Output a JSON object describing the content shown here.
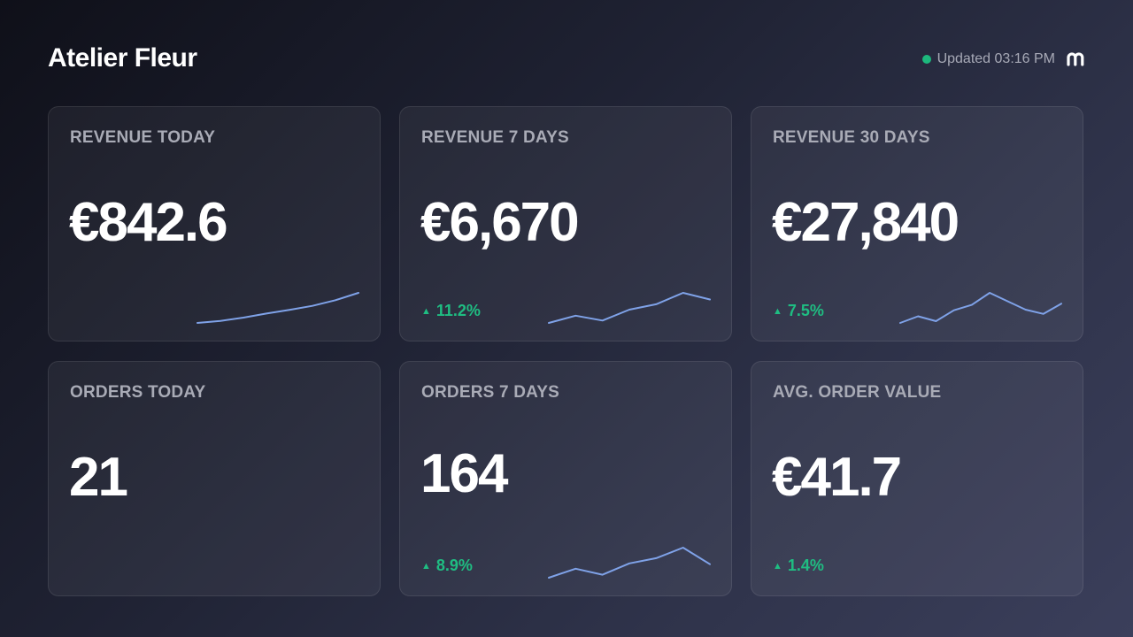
{
  "header": {
    "title": "Atelier Fleur",
    "status_text": "Updated 03:16 PM",
    "status_color": "#1db87d",
    "logo_icon": "m-logo-icon"
  },
  "colors": {
    "accent_positive": "#1fbd82",
    "sparkline": "#7fa2e8"
  },
  "cards": [
    {
      "label": "REVENUE TODAY",
      "value": "€842.6",
      "change": "",
      "spark": [
        1.0,
        1.6,
        2.6,
        3.8,
        4.9,
        6.1,
        7.8,
        10.0
      ]
    },
    {
      "label": "REVENUE 7 DAYS",
      "value": "€6,670",
      "change": "11.2%",
      "spark": [
        5.0,
        6.2,
        5.4,
        7.2,
        8.1,
        10.0,
        8.9
      ]
    },
    {
      "label": "REVENUE 30 DAYS",
      "value": "€27,840",
      "change": "7.5%",
      "spark": [
        5.0,
        6.1,
        5.3,
        7.1,
        8.0,
        10.0,
        8.6,
        7.2,
        6.5,
        8.2
      ]
    },
    {
      "label": "ORDERS TODAY",
      "value": "21",
      "change": "",
      "spark": []
    },
    {
      "label": "ORDERS 7 DAYS",
      "value": "164",
      "change": "8.9%",
      "spark": [
        5.0,
        6.2,
        5.4,
        6.9,
        7.6,
        9.0,
        6.8
      ]
    },
    {
      "label": "AVG. ORDER VALUE",
      "value": "€41.7",
      "change": "1.4%",
      "spark": []
    }
  ]
}
